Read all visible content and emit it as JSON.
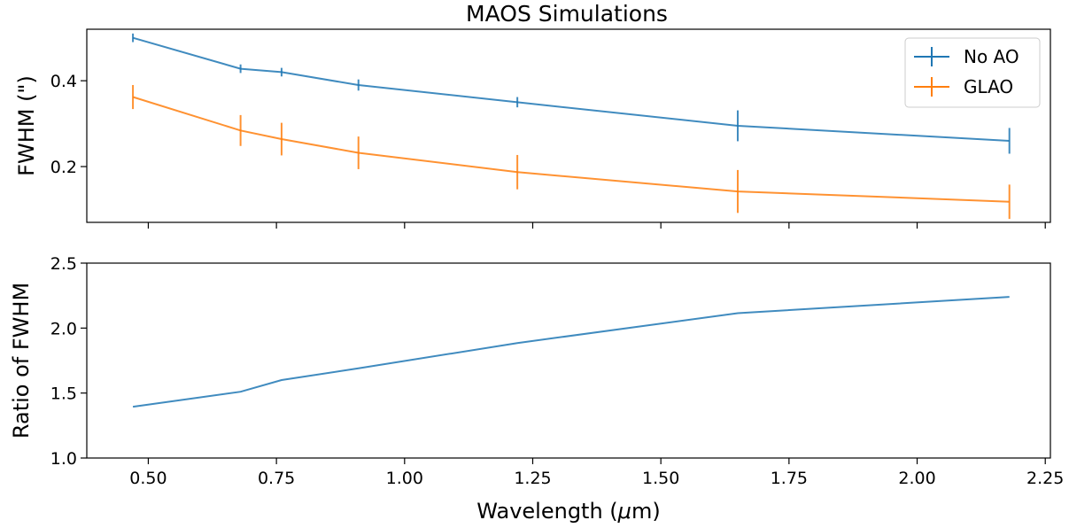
{
  "figure": {
    "title": "MAOS Simulations",
    "xlabel": "Wavelength (μm)"
  },
  "chart_data": [
    {
      "type": "line",
      "panel": "top",
      "title": "MAOS Simulations",
      "xlabel": "",
      "ylabel": "FWHM (\")",
      "xlim": [
        0.38,
        2.26
      ],
      "ylim": [
        0.07,
        0.52
      ],
      "yticks": [
        0.2,
        0.4
      ],
      "ytick_labels": [
        "0.2",
        "0.4"
      ],
      "xticks": [
        0.5,
        0.75,
        1.0,
        1.25,
        1.5,
        1.75,
        2.0,
        2.25
      ],
      "legend": "top-right",
      "grid": false,
      "x": [
        0.47,
        0.68,
        0.76,
        0.91,
        1.22,
        1.65,
        2.18
      ],
      "series": [
        {
          "name": "No AO",
          "color": "#1f77b4",
          "values": [
            0.5,
            0.428,
            0.42,
            0.39,
            0.35,
            0.295,
            0.26
          ],
          "errors": [
            0.01,
            0.01,
            0.01,
            0.013,
            0.012,
            0.036,
            0.03
          ]
        },
        {
          "name": "GLAO",
          "color": "#ff7f0e",
          "values": [
            0.362,
            0.284,
            0.264,
            0.232,
            0.187,
            0.142,
            0.118
          ],
          "errors": [
            0.028,
            0.036,
            0.038,
            0.038,
            0.04,
            0.05,
            0.04
          ]
        }
      ]
    },
    {
      "type": "line",
      "panel": "bottom",
      "xlabel": "Wavelength (μm)",
      "ylabel": "Ratio of FWHM",
      "xlim": [
        0.38,
        2.26
      ],
      "ylim": [
        1.0,
        2.5
      ],
      "yticks": [
        1.0,
        1.5,
        2.0,
        2.5
      ],
      "ytick_labels": [
        "1.0",
        "1.5",
        "2.0",
        "2.5"
      ],
      "xticks": [
        0.5,
        0.75,
        1.0,
        1.25,
        1.5,
        1.75,
        2.0,
        2.25
      ],
      "xtick_labels": [
        "0.50",
        "0.75",
        "1.00",
        "1.25",
        "1.50",
        "1.75",
        "2.00",
        "2.25"
      ],
      "grid": false,
      "x": [
        0.47,
        0.68,
        0.76,
        0.91,
        1.22,
        1.65,
        2.18
      ],
      "series": [
        {
          "color": "#1f77b4",
          "values": [
            1.395,
            1.51,
            1.6,
            1.69,
            1.885,
            2.115,
            2.24
          ]
        }
      ]
    }
  ]
}
